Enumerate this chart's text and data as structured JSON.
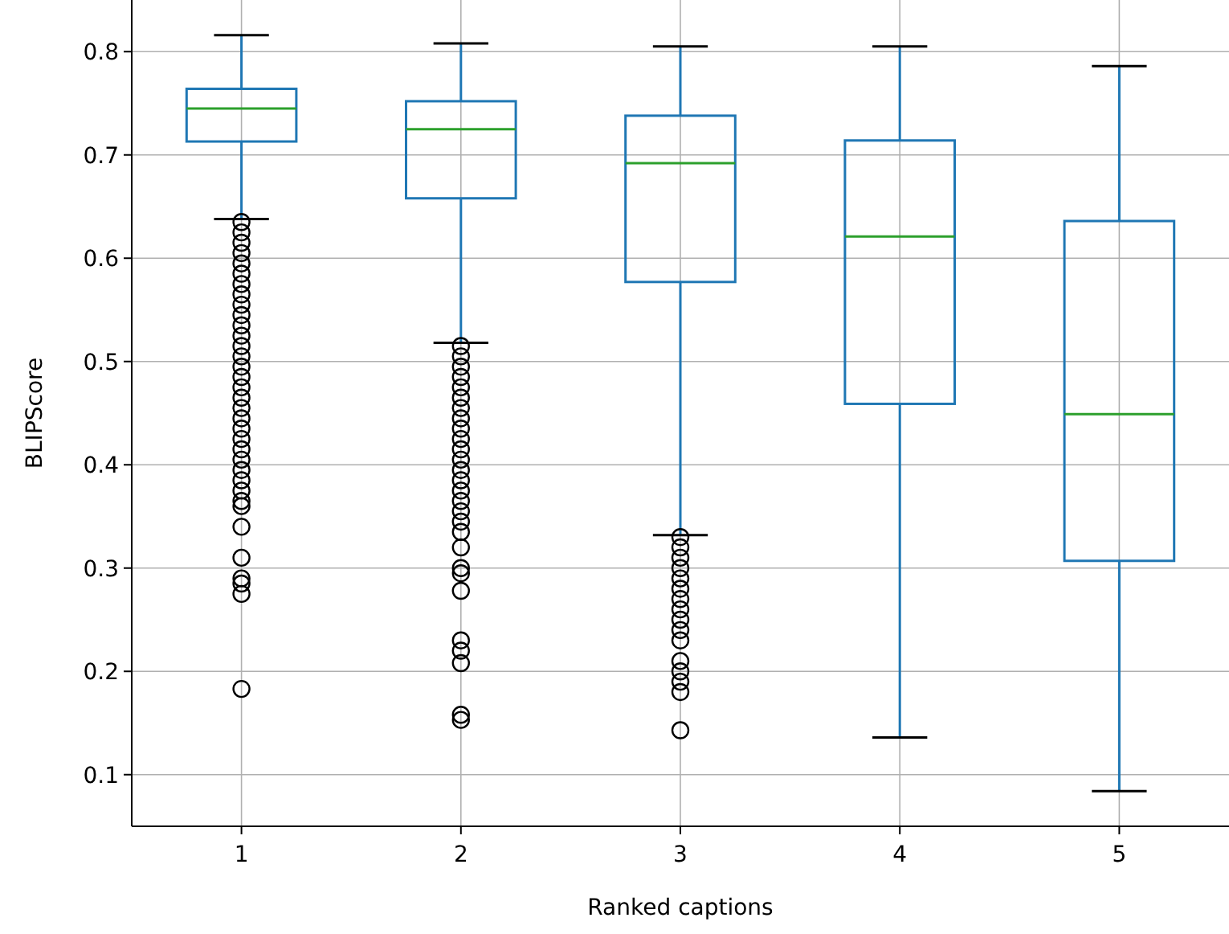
{
  "chart_data": {
    "type": "box",
    "xlabel": "Ranked captions",
    "ylabel": "BLIPScore",
    "categories": [
      "1",
      "2",
      "3",
      "4",
      "5"
    ],
    "color": "#1f77b4",
    "marker": "circle",
    "grid": true,
    "ylim": [
      0.05,
      0.85
    ],
    "yticks": [
      {
        "value": 0.1,
        "label": "0.1"
      },
      {
        "value": 0.2,
        "label": "0.2"
      },
      {
        "value": 0.3,
        "label": "0.3"
      },
      {
        "value": 0.4,
        "label": "0.4"
      },
      {
        "value": 0.5,
        "label": "0.5"
      },
      {
        "value": 0.6,
        "label": "0.6"
      },
      {
        "value": 0.7,
        "label": "0.7"
      },
      {
        "value": 0.8,
        "label": "0.8"
      }
    ],
    "boxes": [
      {
        "low": 0.638,
        "q1": 0.713,
        "median": 0.745,
        "q3": 0.764,
        "high": 0.816,
        "outliers": [
          0.635,
          0.625,
          0.615,
          0.605,
          0.595,
          0.585,
          0.575,
          0.565,
          0.555,
          0.545,
          0.535,
          0.525,
          0.515,
          0.505,
          0.495,
          0.485,
          0.475,
          0.465,
          0.455,
          0.445,
          0.435,
          0.425,
          0.415,
          0.405,
          0.395,
          0.385,
          0.375,
          0.365,
          0.36,
          0.34,
          0.31,
          0.29,
          0.285,
          0.275,
          0.183
        ]
      },
      {
        "low": 0.518,
        "q1": 0.658,
        "median": 0.725,
        "q3": 0.752,
        "high": 0.808,
        "outliers": [
          0.515,
          0.505,
          0.495,
          0.485,
          0.475,
          0.465,
          0.455,
          0.445,
          0.435,
          0.425,
          0.415,
          0.405,
          0.395,
          0.385,
          0.375,
          0.365,
          0.355,
          0.345,
          0.335,
          0.32,
          0.3,
          0.295,
          0.278,
          0.23,
          0.22,
          0.208,
          0.158,
          0.153
        ]
      },
      {
        "low": 0.332,
        "q1": 0.577,
        "median": 0.692,
        "q3": 0.738,
        "high": 0.805,
        "outliers": [
          0.33,
          0.32,
          0.31,
          0.3,
          0.29,
          0.28,
          0.27,
          0.26,
          0.25,
          0.24,
          0.23,
          0.21,
          0.2,
          0.19,
          0.18,
          0.143
        ]
      },
      {
        "low": 0.136,
        "q1": 0.459,
        "median": 0.621,
        "q3": 0.714,
        "high": 0.805
      },
      {
        "low": 0.084,
        "q1": 0.307,
        "median": 0.449,
        "q3": 0.636,
        "high": 0.786
      }
    ]
  }
}
